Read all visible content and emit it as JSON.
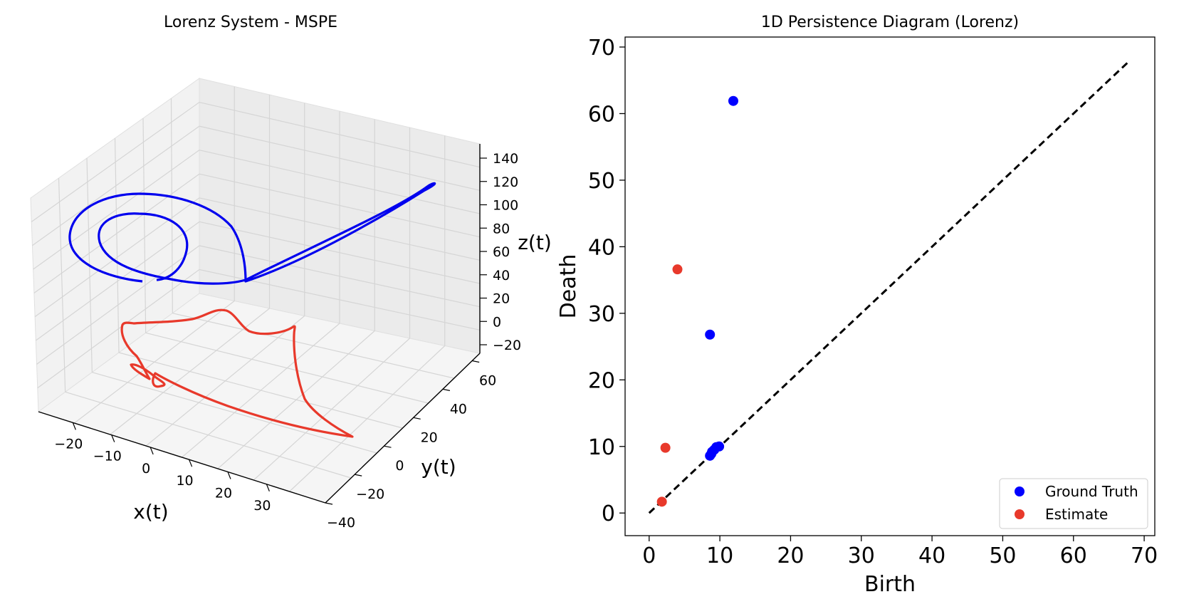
{
  "chart_data": [
    {
      "type": "line3d",
      "title": "Lorenz System - MSPE",
      "xlabel": "x(t)",
      "ylabel": "y(t)",
      "zlabel": "z(t)",
      "x_ticks": [
        "−20",
        "−10",
        "0",
        "10",
        "20",
        "30"
      ],
      "y_ticks": [
        "−40",
        "−20",
        "0",
        "20",
        "40",
        "60"
      ],
      "z_ticks": [
        "−20",
        "0",
        "20",
        "40",
        "60",
        "80",
        "100",
        "120",
        "140"
      ],
      "grid": true,
      "series": [
        {
          "color": "#0000ee",
          "shape": "double-lobed closed loop with long extended lobe (upper)"
        },
        {
          "color": "#e8392b",
          "shape": "distorted closed loop (lower)"
        }
      ]
    },
    {
      "type": "scatter",
      "title": "1D Persistence Diagram (Lorenz)",
      "xlabel": "Birth",
      "ylabel": "Death",
      "xlim": [
        -3.4,
        71.5
      ],
      "ylim": [
        -3.4,
        71.5
      ],
      "x_ticks": [
        "0",
        "10",
        "20",
        "30",
        "40",
        "50",
        "60",
        "70"
      ],
      "y_ticks": [
        "0",
        "10",
        "20",
        "30",
        "40",
        "50",
        "60",
        "70"
      ],
      "diagonal": {
        "from": [
          0,
          0
        ],
        "to": [
          68,
          68
        ],
        "style": "dashed",
        "color": "#000000"
      },
      "legend_position": "lower-right",
      "series": [
        {
          "name": "Ground Truth",
          "color": "#0000ff",
          "points": [
            [
              11.9,
              61.9
            ],
            [
              8.6,
              26.8
            ],
            [
              8.6,
              8.6
            ],
            [
              8.9,
              9.2
            ],
            [
              9.2,
              9.5
            ],
            [
              9.5,
              9.9
            ],
            [
              9.9,
              10.0
            ],
            [
              8.8,
              8.9
            ]
          ]
        },
        {
          "name": "Estimate",
          "color": "#e8392b",
          "points": [
            [
              4.0,
              36.6
            ],
            [
              2.3,
              9.8
            ],
            [
              1.8,
              1.7
            ]
          ]
        }
      ]
    }
  ]
}
